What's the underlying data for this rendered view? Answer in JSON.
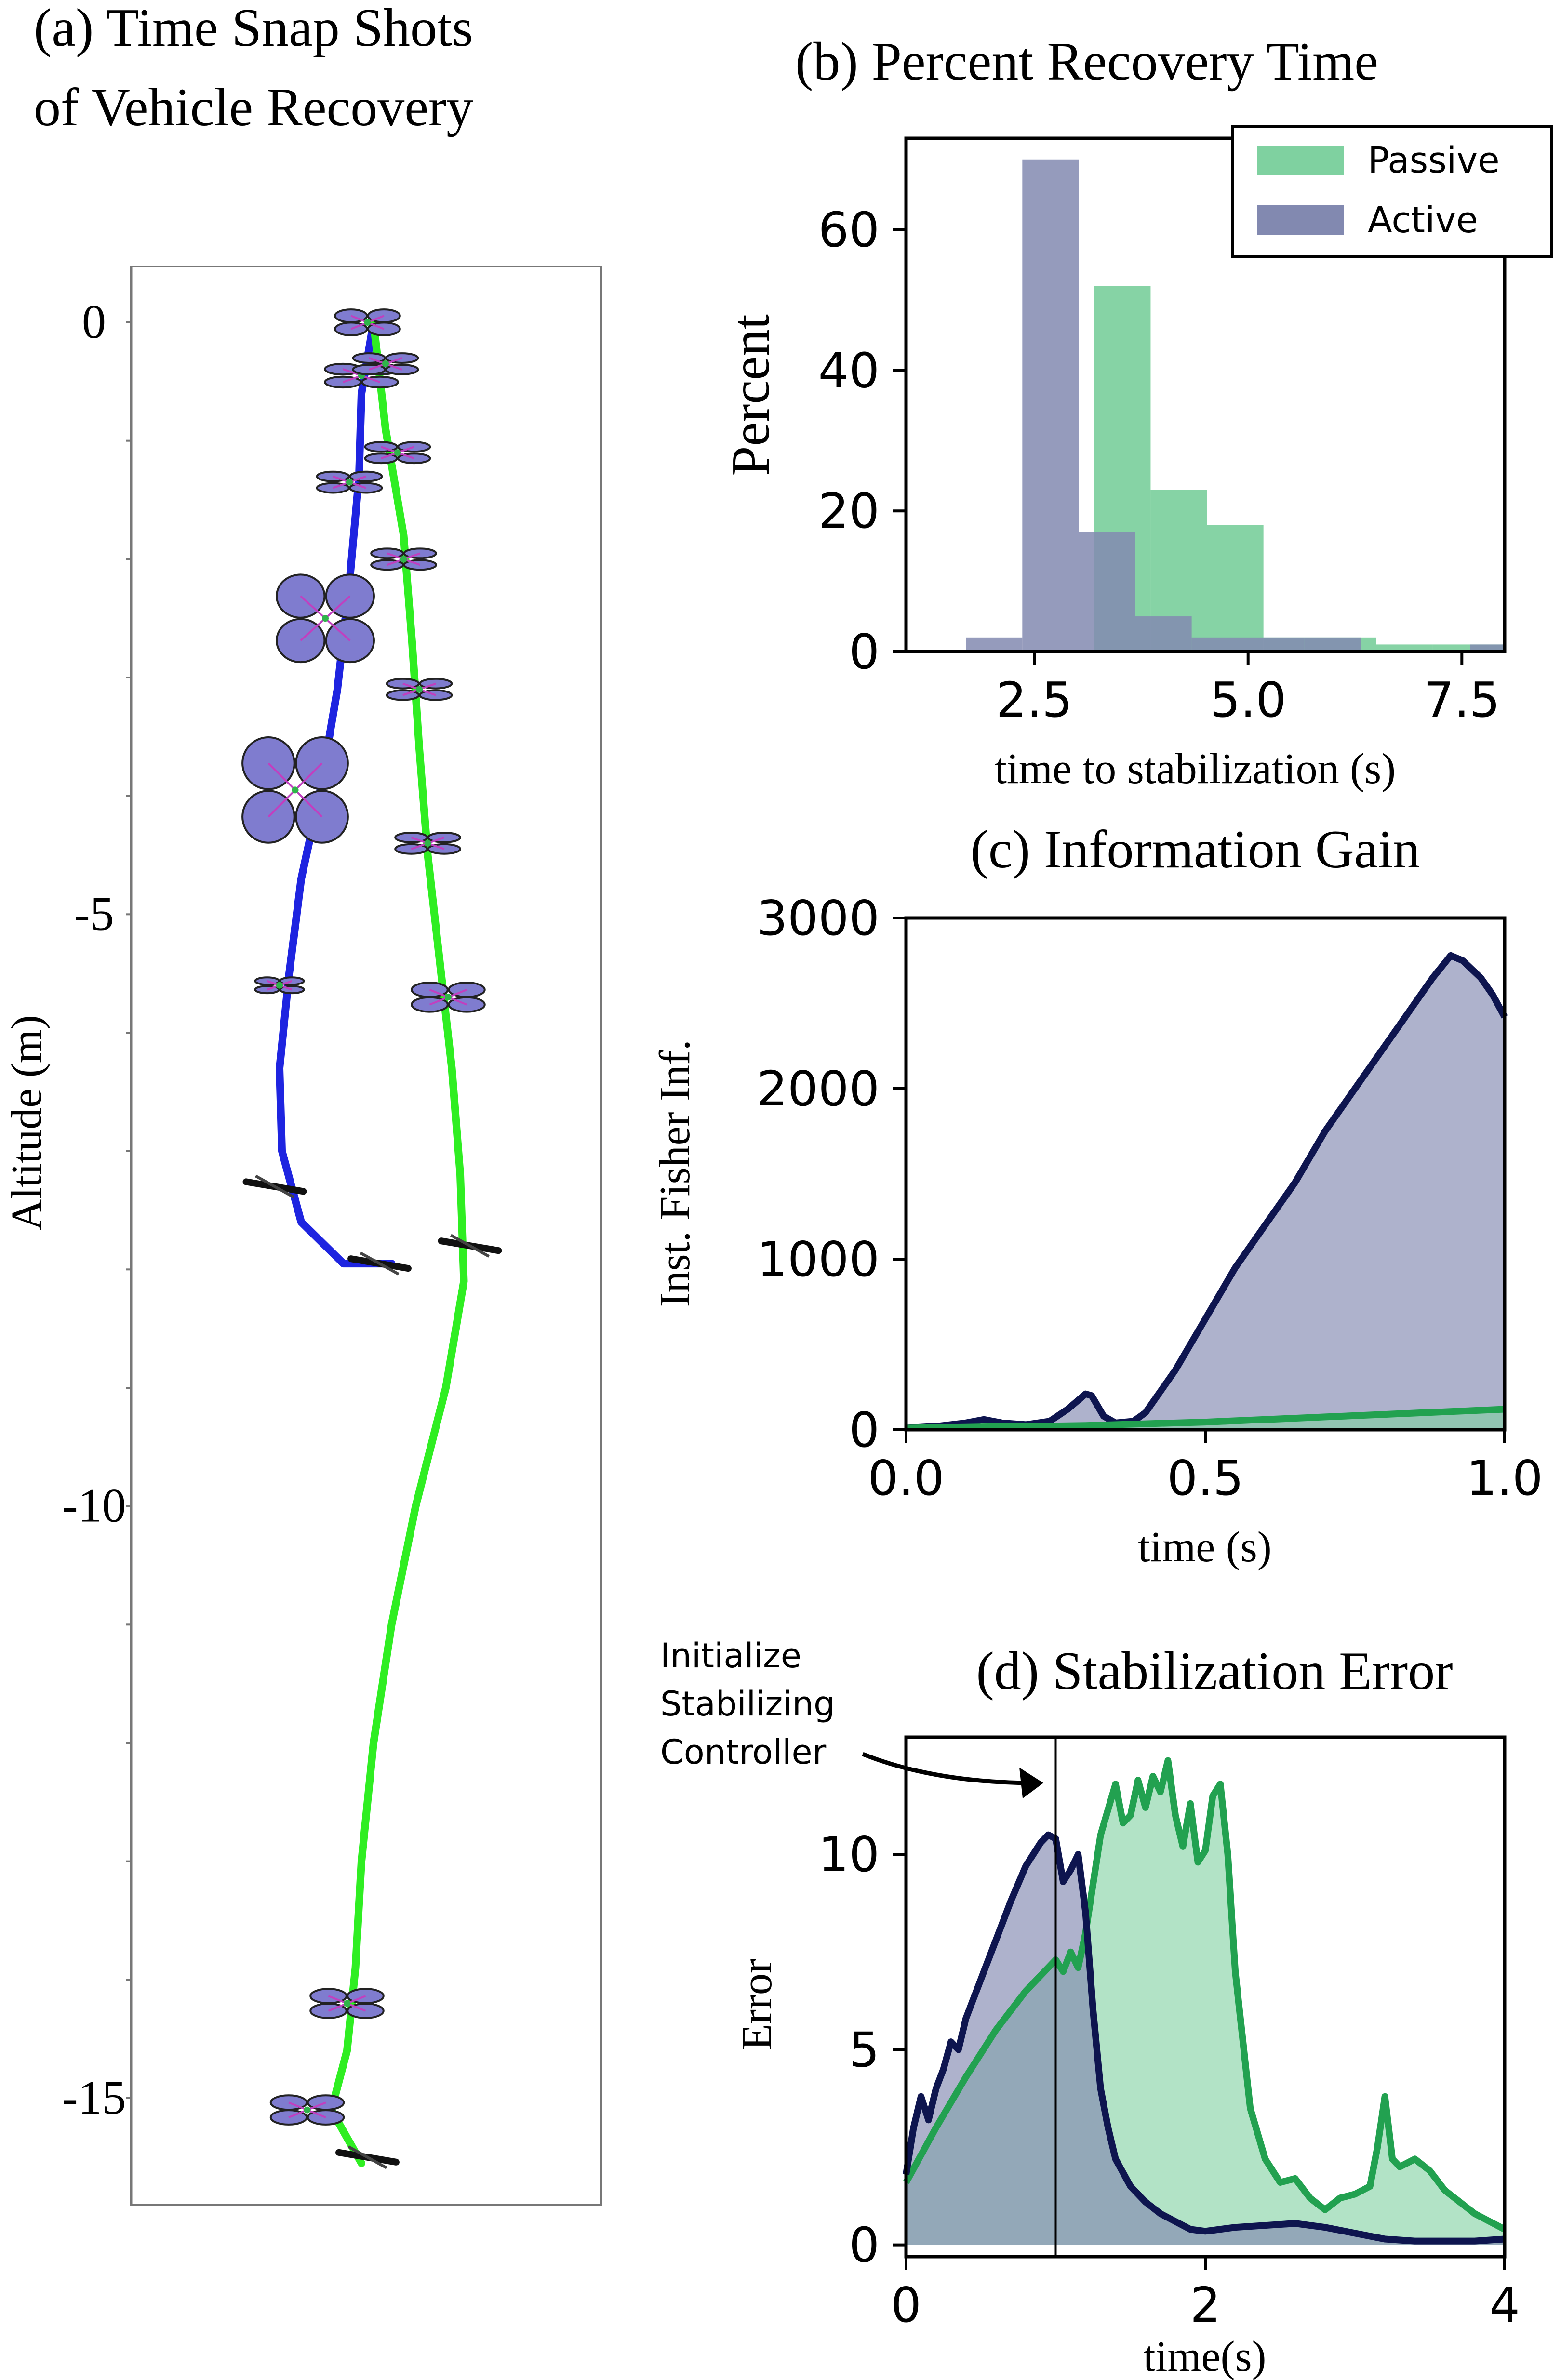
{
  "colors": {
    "passive": "#22a150",
    "passive_fill": "#7fd1a0",
    "active": "#0e154f",
    "active_fill": "#8289b0",
    "blue_path": "#1e24e0",
    "green_path": "#2fee22",
    "quad_body": "#7f7ccf"
  },
  "chart_data": [
    {
      "panel": "a",
      "type": "scatter",
      "title_line1": "(a) Time Snap Shots",
      "title_line2": "of Vehicle Recovery",
      "ylabel": "Altitude (m)",
      "xlabel": "",
      "ylim": [
        -15.6,
        0.5
      ],
      "yticks": [
        0,
        -5,
        -10,
        -15
      ],
      "ytick_labels": [
        "0",
        "-5",
        "-10",
        "-15"
      ],
      "series": [
        {
          "name": "active trajectory",
          "color": "blue",
          "points": [
            [
              0.1,
              0
            ],
            [
              0.0,
              -0.6
            ],
            [
              -0.02,
              -1.3
            ],
            [
              -0.1,
              -2.2
            ],
            [
              -0.2,
              -3.1
            ],
            [
              -0.35,
              -4.0
            ],
            [
              -0.5,
              -4.7
            ],
            [
              -0.6,
              -5.5
            ],
            [
              -0.68,
              -6.3
            ],
            [
              -0.66,
              -7.0
            ],
            [
              -0.5,
              -7.6
            ],
            [
              -0.15,
              -7.95
            ],
            [
              0.25,
              -7.95
            ]
          ]
        },
        {
          "name": "passive trajectory",
          "color": "green",
          "points": [
            [
              0.1,
              0
            ],
            [
              0.2,
              -0.9
            ],
            [
              0.35,
              -1.8
            ],
            [
              0.42,
              -2.7
            ],
            [
              0.48,
              -3.6
            ],
            [
              0.55,
              -4.5
            ],
            [
              0.65,
              -5.4
            ],
            [
              0.75,
              -6.3
            ],
            [
              0.82,
              -7.2
            ],
            [
              0.85,
              -8.1
            ],
            [
              0.7,
              -9.0
            ],
            [
              0.45,
              -10.0
            ],
            [
              0.25,
              -11.0
            ],
            [
              0.1,
              -12.0
            ],
            [
              0.0,
              -13.0
            ],
            [
              -0.05,
              -13.9
            ],
            [
              -0.12,
              -14.6
            ],
            [
              -0.25,
              -15.1
            ],
            [
              0.0,
              -15.55
            ]
          ]
        }
      ],
      "snapshots": [
        {
          "trajectory": "active",
          "x": 0.05,
          "y": 0.0,
          "size": 0.8,
          "tilt": 0.4
        },
        {
          "trajectory": "active",
          "x": 0.0,
          "y": -0.45,
          "size": 0.9,
          "tilt": 0.3
        },
        {
          "trajectory": "active",
          "x": -0.1,
          "y": -1.35,
          "size": 0.8,
          "tilt": 0.3
        },
        {
          "trajectory": "active",
          "x": -0.3,
          "y": -2.5,
          "size": 1.2,
          "tilt": 0.9
        },
        {
          "trajectory": "active",
          "x": -0.55,
          "y": -3.95,
          "size": 1.3,
          "tilt": 1.0
        },
        {
          "trajectory": "active",
          "x": -0.68,
          "y": -5.6,
          "size": 0.6,
          "tilt": 0.15
        },
        {
          "trajectory": "active",
          "x": -0.72,
          "y": -7.3,
          "size": 0.55,
          "tilt": 0.0
        },
        {
          "trajectory": "active",
          "x": 0.15,
          "y": -7.95,
          "size": 0.55,
          "tilt": 0.0
        },
        {
          "trajectory": "passive",
          "x": 0.2,
          "y": -0.35,
          "size": 0.8,
          "tilt": 0.3
        },
        {
          "trajectory": "passive",
          "x": 0.3,
          "y": -1.1,
          "size": 0.8,
          "tilt": 0.3
        },
        {
          "trajectory": "passive",
          "x": 0.35,
          "y": -2.0,
          "size": 0.8,
          "tilt": 0.3
        },
        {
          "trajectory": "passive",
          "x": 0.48,
          "y": -3.1,
          "size": 0.8,
          "tilt": 0.3
        },
        {
          "trajectory": "passive",
          "x": 0.55,
          "y": -4.4,
          "size": 0.8,
          "tilt": 0.3
        },
        {
          "trajectory": "passive",
          "x": 0.72,
          "y": -5.7,
          "size": 0.9,
          "tilt": 0.4
        },
        {
          "trajectory": "passive",
          "x": 0.9,
          "y": -7.8,
          "size": 0.55,
          "tilt": 0.0
        },
        {
          "trajectory": "passive",
          "x": -0.12,
          "y": -14.2,
          "size": 0.9,
          "tilt": 0.4
        },
        {
          "trajectory": "passive",
          "x": -0.45,
          "y": -15.1,
          "size": 0.9,
          "tilt": 0.4
        },
        {
          "trajectory": "passive",
          "x": 0.05,
          "y": -15.5,
          "size": 0.55,
          "tilt": 0.0
        }
      ]
    },
    {
      "panel": "b",
      "type": "bar",
      "title": "(b) Percent Recovery Time",
      "xlabel": "time to stabilization (s)",
      "ylabel": "Percent",
      "xlim": [
        1.0,
        8.0
      ],
      "ylim": [
        0,
        73
      ],
      "xticks": [
        2.5,
        5.0,
        7.5
      ],
      "xtick_labels": [
        "2.5",
        "5.0",
        "7.5"
      ],
      "yticks": [
        0,
        20,
        40,
        60
      ],
      "ytick_labels": [
        "0",
        "20",
        "40",
        "60"
      ],
      "legend_position": "top-right",
      "series": [
        {
          "name": "Passive",
          "bins": [
            [
              3.2,
              3.86,
              52
            ],
            [
              3.86,
              4.52,
              23
            ],
            [
              4.52,
              5.18,
              18
            ],
            [
              5.18,
              5.84,
              2
            ],
            [
              5.84,
              6.5,
              2
            ],
            [
              6.5,
              7.16,
              1
            ],
            [
              7.16,
              7.82,
              1
            ],
            [
              7.82,
              8.0,
              1
            ]
          ]
        },
        {
          "name": "Active",
          "bins": [
            [
              1.7,
              2.36,
              2
            ],
            [
              2.36,
              3.02,
              70
            ],
            [
              3.02,
              3.68,
              17
            ],
            [
              3.68,
              4.34,
              5
            ],
            [
              4.34,
              5.0,
              2
            ],
            [
              5.0,
              5.66,
              2
            ],
            [
              5.66,
              6.32,
              2
            ],
            [
              7.6,
              8.0,
              1
            ]
          ]
        }
      ]
    },
    {
      "panel": "c",
      "type": "area",
      "title": "(c) Information Gain",
      "xlabel": "time (s)",
      "ylabel": "Inst. Fisher Inf.",
      "xlim": [
        0.0,
        1.0
      ],
      "ylim": [
        0,
        3000
      ],
      "xticks": [
        0.0,
        0.5,
        1.0
      ],
      "xtick_labels": [
        "0.0",
        "0.5",
        "1.0"
      ],
      "yticks": [
        0,
        1000,
        2000,
        3000
      ],
      "ytick_labels": [
        "0",
        "1000",
        "2000",
        "3000"
      ],
      "series": [
        {
          "name": "Active",
          "x": [
            0,
            0.05,
            0.1,
            0.13,
            0.16,
            0.2,
            0.24,
            0.27,
            0.3,
            0.31,
            0.33,
            0.35,
            0.38,
            0.4,
            0.45,
            0.5,
            0.55,
            0.6,
            0.65,
            0.7,
            0.75,
            0.8,
            0.85,
            0.88,
            0.91,
            0.93,
            0.96,
            0.98,
            1.0
          ],
          "y": [
            10,
            20,
            40,
            60,
            40,
            30,
            50,
            120,
            210,
            200,
            80,
            40,
            50,
            100,
            350,
            650,
            950,
            1200,
            1450,
            1750,
            2000,
            2250,
            2500,
            2650,
            2780,
            2750,
            2650,
            2550,
            2420
          ]
        },
        {
          "name": "Passive",
          "x": [
            0,
            0.1,
            0.2,
            0.3,
            0.4,
            0.5,
            0.6,
            0.7,
            0.8,
            0.9,
            1.0
          ],
          "y": [
            10,
            15,
            20,
            25,
            35,
            45,
            60,
            75,
            90,
            105,
            120
          ]
        }
      ]
    },
    {
      "panel": "d",
      "type": "area",
      "title": "(d) Stabilization Error",
      "xlabel": "time(s)",
      "ylabel": "Error",
      "xlim": [
        0,
        4
      ],
      "ylim": [
        -0.3,
        13
      ],
      "xticks": [
        0,
        2,
        4
      ],
      "xtick_labels": [
        "0",
        "2",
        "4"
      ],
      "yticks": [
        0,
        5,
        10
      ],
      "ytick_labels": [
        "0",
        "5",
        "10"
      ],
      "vline_x": 1.0,
      "annotation_line1": "Initialize",
      "annotation_line2": "Stabilizing",
      "annotation_line3": "Controller",
      "series": [
        {
          "name": "Active",
          "x": [
            0,
            0.05,
            0.1,
            0.15,
            0.2,
            0.25,
            0.3,
            0.35,
            0.4,
            0.5,
            0.6,
            0.7,
            0.8,
            0.9,
            0.95,
            1.0,
            1.05,
            1.1,
            1.15,
            1.2,
            1.25,
            1.3,
            1.35,
            1.4,
            1.5,
            1.6,
            1.7,
            1.8,
            1.9,
            2.0,
            2.2,
            2.4,
            2.6,
            2.8,
            3.0,
            3.2,
            3.4,
            3.6,
            3.8,
            4.0
          ],
          "y": [
            1.8,
            3.0,
            3.8,
            3.2,
            4.0,
            4.5,
            5.2,
            5.0,
            5.8,
            6.8,
            7.8,
            8.8,
            9.7,
            10.3,
            10.5,
            10.4,
            9.3,
            9.6,
            10.0,
            8.5,
            6.0,
            4.0,
            3.0,
            2.2,
            1.5,
            1.1,
            0.8,
            0.6,
            0.4,
            0.35,
            0.45,
            0.5,
            0.55,
            0.45,
            0.3,
            0.15,
            0.1,
            0.1,
            0.1,
            0.15
          ]
        },
        {
          "name": "Passive",
          "x": [
            0,
            0.2,
            0.4,
            0.6,
            0.8,
            1.0,
            1.05,
            1.1,
            1.15,
            1.2,
            1.3,
            1.4,
            1.45,
            1.5,
            1.55,
            1.6,
            1.65,
            1.7,
            1.75,
            1.8,
            1.85,
            1.9,
            1.95,
            2.0,
            2.05,
            2.1,
            2.15,
            2.2,
            2.3,
            2.4,
            2.5,
            2.6,
            2.7,
            2.8,
            2.9,
            3.0,
            3.1,
            3.15,
            3.2,
            3.25,
            3.3,
            3.4,
            3.5,
            3.6,
            3.8,
            4.0
          ],
          "y": [
            1.6,
            3.0,
            4.3,
            5.5,
            6.5,
            7.3,
            7.0,
            7.5,
            7.1,
            8.0,
            10.5,
            11.8,
            10.8,
            11.0,
            11.9,
            11.2,
            12.0,
            11.6,
            12.4,
            11.0,
            10.2,
            11.3,
            9.8,
            10.1,
            11.5,
            11.8,
            10.0,
            7.0,
            3.5,
            2.2,
            1.6,
            1.7,
            1.2,
            0.9,
            1.2,
            1.3,
            1.5,
            2.5,
            3.8,
            2.2,
            2.0,
            2.2,
            1.9,
            1.4,
            0.8,
            0.4
          ]
        }
      ]
    }
  ]
}
